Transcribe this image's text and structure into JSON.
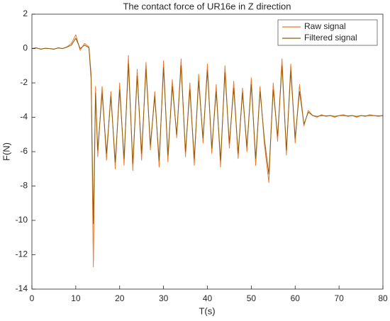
{
  "chart_data": {
    "type": "line",
    "title": "The contact force of UR16e in Z direction",
    "x_label": "T(s)",
    "y_label": "F(N)",
    "x": [
      0,
      1,
      2,
      3,
      4,
      5,
      6,
      7,
      8,
      9,
      10,
      11,
      12,
      13,
      13.5,
      14,
      14.5,
      15,
      16,
      17,
      18,
      19,
      20,
      21,
      22,
      23,
      24,
      25,
      26,
      27,
      28,
      29,
      30,
      31,
      32,
      33,
      34,
      35,
      36,
      37,
      38,
      39,
      40,
      41,
      42,
      43,
      44,
      45,
      46,
      47,
      48,
      49,
      50,
      51,
      52,
      53,
      54,
      55,
      56,
      57,
      58,
      59,
      60,
      61,
      62,
      63,
      64,
      65,
      66,
      67,
      68,
      69,
      70,
      71,
      72,
      73,
      74,
      75,
      76,
      77,
      78,
      79,
      80
    ],
    "series": [
      {
        "name": "Raw signal",
        "color": "#f0782a",
        "values": [
          0.0,
          0.05,
          -0.05,
          0.02,
          0.0,
          -0.05,
          0.05,
          0.0,
          0.1,
          0.3,
          0.8,
          -0.1,
          0.3,
          0.1,
          -1.5,
          -12.7,
          -2.2,
          -6.3,
          -2.2,
          -6.5,
          -2.5,
          -7.0,
          -2.0,
          -6.8,
          -0.4,
          -7.1,
          -1.2,
          -6.5,
          -0.8,
          -5.9,
          -2.5,
          -6.9,
          -0.7,
          -6.6,
          -1.8,
          -5.2,
          -0.6,
          -6.3,
          -2.0,
          -6.8,
          -1.5,
          -5.5,
          -0.9,
          -6.1,
          -2.1,
          -6.9,
          -1.0,
          -5.8,
          -1.9,
          -6.4,
          -2.3,
          -6.0,
          -1.7,
          -6.8,
          -2.2,
          -5.6,
          -7.8,
          -2.0,
          -5.4,
          -0.6,
          -6.2,
          -0.9,
          -5.5,
          -2.1,
          -4.5,
          -3.6,
          -3.9,
          -4.0,
          -3.85,
          -3.95,
          -3.9,
          -4.0,
          -3.9,
          -3.85,
          -3.95,
          -3.9,
          -4.0,
          -3.9,
          -3.95,
          -3.85,
          -3.9,
          -3.95,
          -3.9
        ]
      },
      {
        "name": "Filtered signal",
        "color": "#8a5f10",
        "values": [
          0.0,
          0.03,
          -0.03,
          0.01,
          0.0,
          -0.03,
          0.03,
          0.0,
          0.08,
          0.2,
          0.6,
          0.0,
          0.2,
          0.05,
          -1.8,
          -10.2,
          -2.6,
          -5.9,
          -2.6,
          -6.1,
          -2.8,
          -6.6,
          -2.4,
          -6.4,
          -0.9,
          -6.7,
          -1.6,
          -6.1,
          -1.2,
          -5.6,
          -2.8,
          -6.5,
          -1.1,
          -6.2,
          -2.2,
          -5.0,
          -1.0,
          -6.0,
          -2.4,
          -6.4,
          -1.9,
          -5.2,
          -1.3,
          -5.8,
          -2.5,
          -6.5,
          -1.4,
          -5.5,
          -2.3,
          -6.1,
          -2.6,
          -5.7,
          -2.1,
          -6.4,
          -2.5,
          -5.3,
          -7.3,
          -2.4,
          -5.1,
          -1.0,
          -5.9,
          -1.3,
          -5.2,
          -2.5,
          -4.4,
          -3.7,
          -3.9,
          -3.95,
          -3.9,
          -3.92,
          -3.9,
          -3.95,
          -3.9,
          -3.9,
          -3.92,
          -3.9,
          -3.95,
          -3.9,
          -3.92,
          -3.9,
          -3.9,
          -3.92,
          -3.9
        ]
      }
    ],
    "xlim": [
      0,
      80
    ],
    "xticks": [
      0,
      10,
      20,
      30,
      40,
      50,
      60,
      70,
      80
    ],
    "ylim": [
      -14,
      2
    ],
    "yticks": [
      -14,
      -12,
      -10,
      -8,
      -6,
      -4,
      -2,
      0,
      2
    ],
    "legend": "upper right",
    "grid": false
  }
}
